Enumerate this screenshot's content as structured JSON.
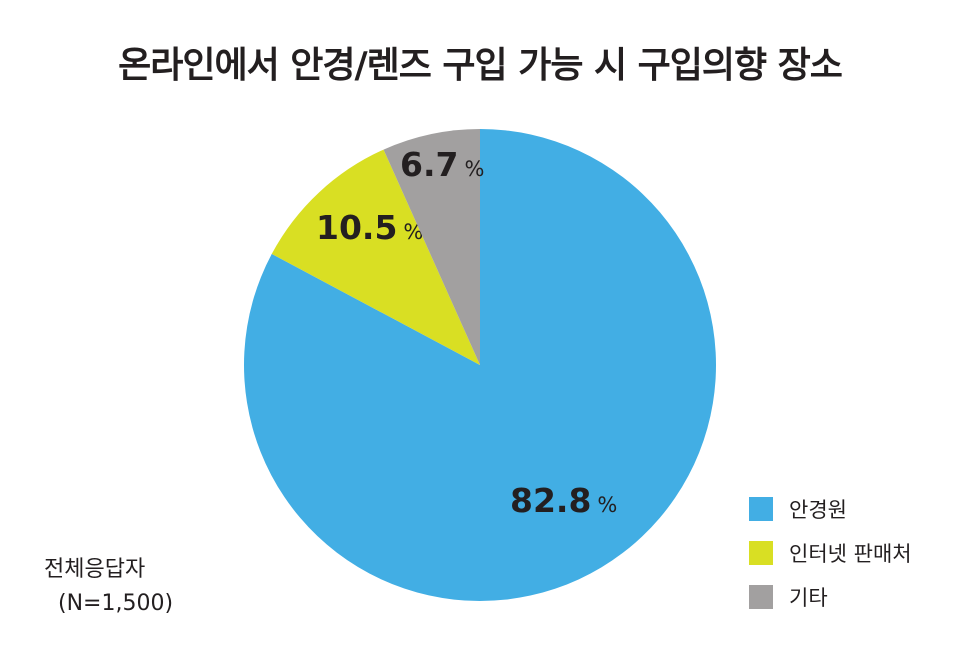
{
  "chart_data": {
    "type": "pie",
    "title": "온라인에서 안경/렌즈 구입 가능 시 구입의향 장소",
    "slices": [
      {
        "label": "안경원",
        "value": 82.8,
        "color": "#42aee4"
      },
      {
        "label": "인터넷 판매처",
        "value": 10.5,
        "color": "#d9df23"
      },
      {
        "label": "기타",
        "value": 6.7,
        "color": "#a2a0a0"
      }
    ],
    "value_suffix": "%",
    "annotation": {
      "line1": "전체응답자",
      "line2": "(N=1,500)"
    },
    "legend_position": "bottom-right"
  }
}
